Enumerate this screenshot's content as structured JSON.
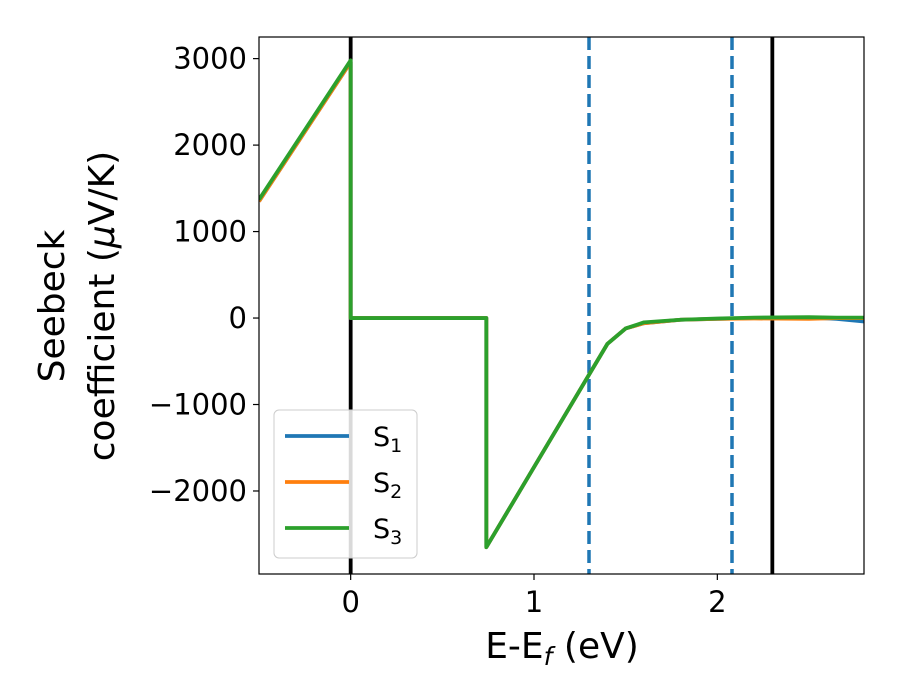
{
  "chart_data": {
    "type": "line",
    "xlabel": {
      "main": "E-E",
      "sub": "f",
      "unit": " (eV)"
    },
    "ylabel": {
      "line1": "Seebeck",
      "line2_pre": "coefficient  (",
      "mu": "μ",
      "line2_post": "V/K)"
    },
    "xlim": [
      -0.5,
      2.8
    ],
    "ylim": [
      -2960,
      3250
    ],
    "xticks": [
      0,
      1,
      2
    ],
    "xtick_labels": [
      "0",
      "1",
      "2"
    ],
    "yticks": [
      -2000,
      -1000,
      0,
      1000,
      2000,
      3000
    ],
    "ytick_labels": [
      "−2000",
      "−1000",
      "0",
      "1000",
      "2000",
      "3000"
    ],
    "vlines": [
      {
        "x": 0.0,
        "style": "solid",
        "color": "#000000"
      },
      {
        "x": 2.3,
        "style": "solid",
        "color": "#000000"
      },
      {
        "x": 1.3,
        "style": "dashed",
        "color": "#1f77b4"
      },
      {
        "x": 2.08,
        "style": "dashed",
        "color": "#1f77b4"
      }
    ],
    "legend": {
      "position": "lower-left"
    },
    "series": [
      {
        "name": "S",
        "sub": "1",
        "color": "#1f77b4",
        "x": [
          -0.5,
          0.0,
          0.0,
          0.74,
          0.74,
          1.4,
          1.5,
          1.6,
          1.8,
          2.0,
          2.2,
          2.5,
          2.65,
          2.8
        ],
        "y": [
          1350,
          2960,
          0,
          0,
          -2650,
          -300,
          -120,
          -60,
          -20,
          -10,
          0,
          5,
          -10,
          -40
        ]
      },
      {
        "name": "S",
        "sub": "2",
        "color": "#ff7f0e",
        "x": [
          -0.5,
          0.0,
          0.0,
          0.74,
          0.74,
          1.4,
          1.5,
          1.6,
          1.8,
          2.0,
          2.2,
          2.5,
          2.65,
          2.8
        ],
        "y": [
          1350,
          2960,
          0,
          0,
          -2650,
          -300,
          -120,
          -60,
          -20,
          -10,
          -5,
          -10,
          0,
          0
        ]
      },
      {
        "name": "S",
        "sub": "3",
        "color": "#2ca02c",
        "x": [
          -0.5,
          0.0,
          0.0,
          0.74,
          0.74,
          1.4,
          1.5,
          1.6,
          1.8,
          2.0,
          2.2,
          2.5,
          2.65,
          2.8
        ],
        "y": [
          1370,
          2980,
          0,
          0,
          -2650,
          -300,
          -120,
          -50,
          -20,
          -5,
          5,
          10,
          5,
          5
        ]
      }
    ]
  }
}
